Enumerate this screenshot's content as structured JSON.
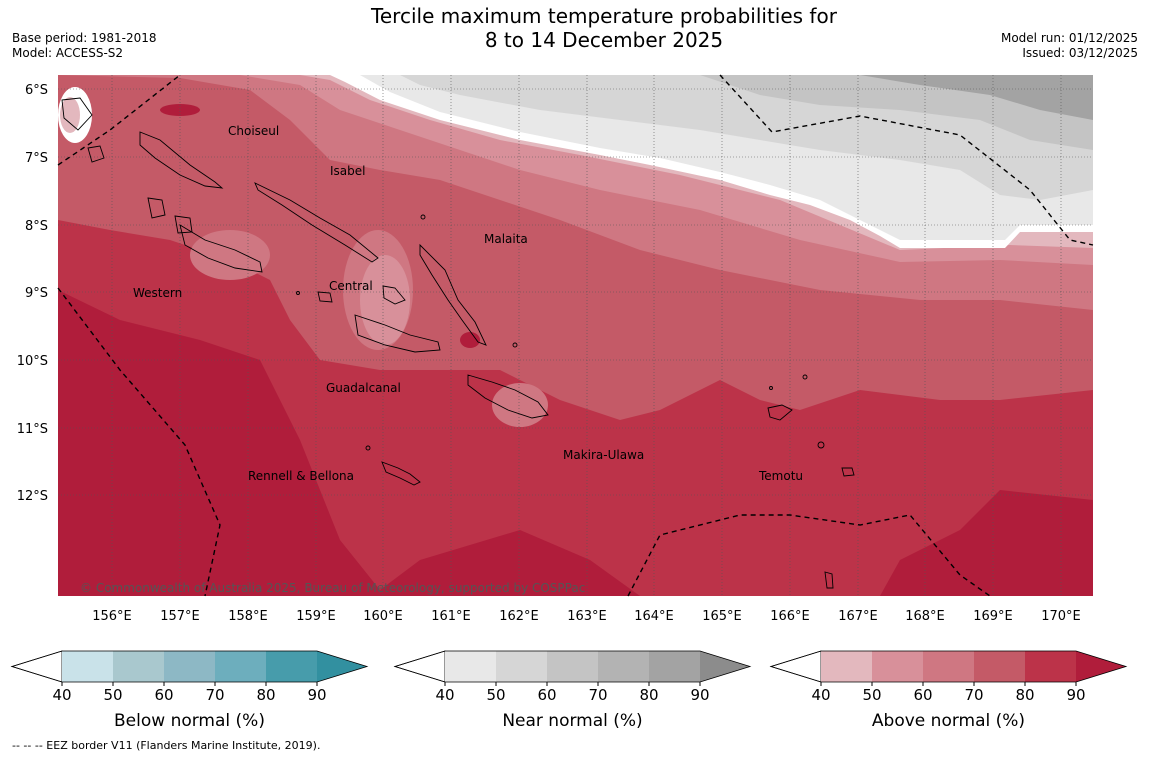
{
  "title": {
    "line1": "Tercile maximum temperature probabilities for",
    "line2": "8 to 14 December 2025"
  },
  "meta": {
    "base_period": "Base period: 1981-2018",
    "model": "Model: ACCESS-S2",
    "model_run": "Model run: 01/12/2025",
    "issued": "Issued: 03/12/2025"
  },
  "axes": {
    "lat_labels": [
      "6°S",
      "7°S",
      "8°S",
      "9°S",
      "10°S",
      "11°S",
      "12°S"
    ],
    "lon_labels": [
      "156°E",
      "157°E",
      "158°E",
      "159°E",
      "160°E",
      "161°E",
      "162°E",
      "163°E",
      "164°E",
      "165°E",
      "166°E",
      "167°E",
      "168°E",
      "169°E",
      "170°E"
    ]
  },
  "regions": [
    "Choiseul",
    "Isabel",
    "Malaita",
    "Western",
    "Central",
    "Guadalcanal",
    "Makira-Ulawa",
    "Rennell & Bellona",
    "Temotu"
  ],
  "copyright": "© Commonwealth of Australia 2025, Bureau of Meteorology, supported by COSPPac",
  "colorbars": [
    {
      "label": "Below normal (%)",
      "ticks": [
        "40",
        "50",
        "60",
        "70",
        "80",
        "90"
      ],
      "colors": [
        "#c9e2e9",
        "#a9c8ce",
        "#8db8c5",
        "#6daebd",
        "#479cab",
        "#3290a0"
      ]
    },
    {
      "label": "Near normal (%)",
      "ticks": [
        "40",
        "50",
        "60",
        "70",
        "80",
        "90"
      ],
      "colors": [
        "#e8e8e8",
        "#d6d6d6",
        "#c4c4c4",
        "#b3b3b3",
        "#a3a3a3",
        "#8c8c8c"
      ]
    },
    {
      "label": "Above normal (%)",
      "ticks": [
        "40",
        "50",
        "60",
        "70",
        "80",
        "90"
      ],
      "colors": [
        "#e3b8be",
        "#d8909a",
        "#cf7782",
        "#c45a67",
        "#bc3349",
        "#b01d3b"
      ]
    }
  ],
  "footnote": "--  --  -- EEZ border V11 (Flanders Marine Institute, 2019).",
  "colors": {
    "above_50": "#e3b8be",
    "above_60": "#d8909a",
    "above_70": "#cf7782",
    "above_80": "#c45a67",
    "above_90": "#bc3349",
    "above_max": "#b01d3b",
    "near_40": "#e8e8e8",
    "near_50": "#d6d6d6",
    "near_60": "#c4c4c4",
    "near_70": "#a3a3a3"
  }
}
